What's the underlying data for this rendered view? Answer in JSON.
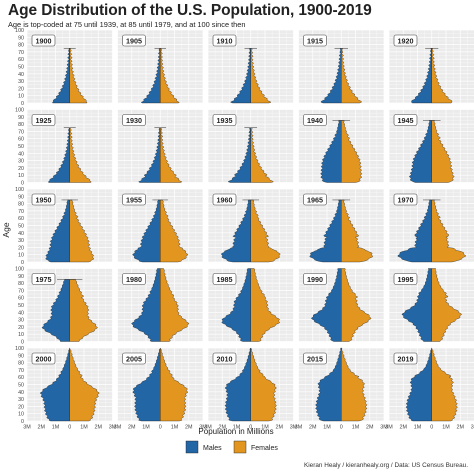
{
  "title": "Age Distribution of the U.S. Population, 1900-2019",
  "subtitle": "Age is top-coded at 75 until 1939, at 85 until 1979, and at 100 since then",
  "caption": "Kieran Healy / kieranhealy.org / Data: US Census Bureau.",
  "colors": {
    "males": "#2266a5",
    "females": "#e3961f",
    "panel_bg": "#ebebeb",
    "grid": "#ffffff"
  },
  "chart_data": {
    "type": "area",
    "facets": [
      "1900",
      "1905",
      "1910",
      "1915",
      "1920",
      "1925",
      "1930",
      "1935",
      "1940",
      "1945",
      "1950",
      "1955",
      "1960",
      "1965",
      "1970",
      "1975",
      "1980",
      "1985",
      "1990",
      "1995",
      "2000",
      "2005",
      "2010",
      "2015",
      "2019"
    ],
    "facet_topcode": {
      "1900": 75,
      "1905": 75,
      "1910": 75,
      "1915": 75,
      "1920": 75,
      "1925": 75,
      "1930": 75,
      "1935": 75,
      "1940": 85,
      "1945": 85,
      "1950": 85,
      "1955": 85,
      "1960": 85,
      "1965": 85,
      "1970": 85,
      "1975": 85,
      "1980": 100,
      "1985": 100,
      "1990": 100,
      "1995": 100,
      "2000": 100,
      "2005": 100,
      "2010": 100,
      "2015": 100,
      "2019": 100
    },
    "ylabel": "Age",
    "xlabel": "Population in Millions",
    "ylim": [
      0,
      100
    ],
    "yticks": [
      "0",
      "10",
      "20",
      "30",
      "40",
      "50",
      "60",
      "70",
      "80",
      "90",
      "100"
    ],
    "y_minor_ticks": [
      "5",
      "15",
      "25",
      "35",
      "45",
      "55",
      "65",
      "75",
      "85",
      "95"
    ],
    "xlim": [
      -3,
      3
    ],
    "xtick_values": [
      -3,
      -2,
      -1,
      0,
      1,
      2,
      3
    ],
    "xtick_labels": [
      "3M",
      "2M",
      "1M",
      "0",
      "1M",
      "2M",
      "3M"
    ],
    "series": [
      {
        "name": "Males",
        "side": "left"
      },
      {
        "name": "Females",
        "side": "right"
      }
    ],
    "legend": {
      "position": "bottom",
      "entries": [
        "Males",
        "Females"
      ]
    },
    "grid": true
  }
}
